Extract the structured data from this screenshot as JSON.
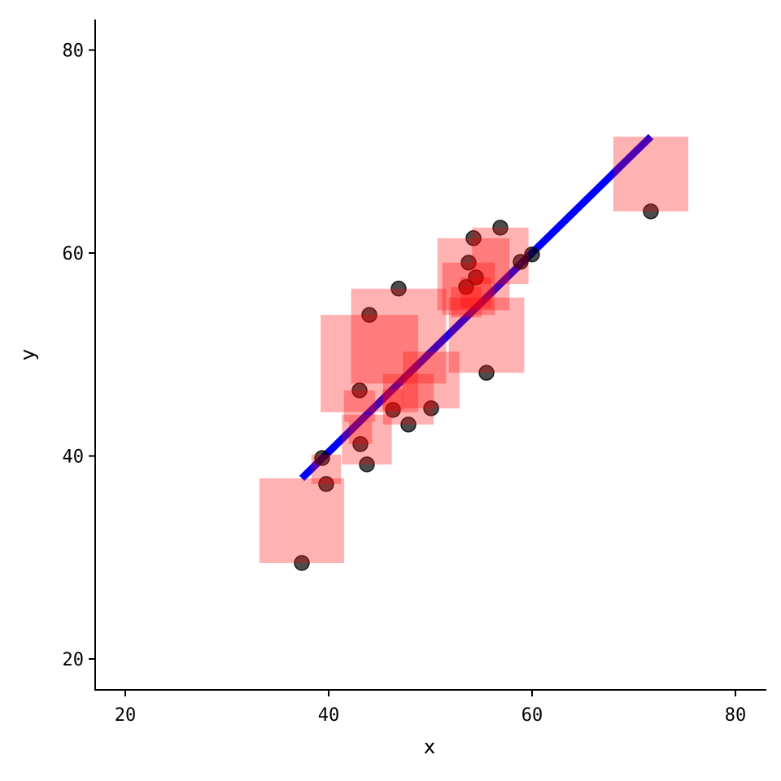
{
  "chart_data": {
    "type": "scatter",
    "title": "",
    "xlabel": "x",
    "ylabel": "y",
    "xlim": [
      17,
      83
    ],
    "ylim": [
      17,
      83
    ],
    "xticks": [
      "20",
      "40",
      "60",
      "80"
    ],
    "yticks": [
      "20",
      "40",
      "60",
      "80"
    ],
    "grid": false,
    "points": {
      "color": "#000000",
      "opacity": 0.7,
      "x": [
        37.36,
        39.36,
        39.76,
        43.04,
        43.12,
        43.76,
        44.0,
        46.32,
        46.88,
        47.84,
        50.08,
        53.52,
        53.76,
        54.24,
        54.48,
        55.52,
        56.88,
        58.88,
        60.0,
        71.68
      ],
      "y": [
        29.46,
        39.8,
        37.24,
        46.46,
        41.17,
        39.17,
        53.9,
        44.54,
        56.49,
        43.1,
        44.7,
        56.65,
        59.05,
        61.46,
        57.6,
        48.2,
        62.5,
        59.13,
        59.86,
        64.1
      ]
    },
    "fit_line": {
      "color": "#0000ff",
      "intercept": 1.15,
      "slope": 0.981,
      "x_range": [
        37.36,
        71.68
      ]
    },
    "residual_squares": {
      "color": "#ff0000",
      "opacity": 0.3
    }
  }
}
